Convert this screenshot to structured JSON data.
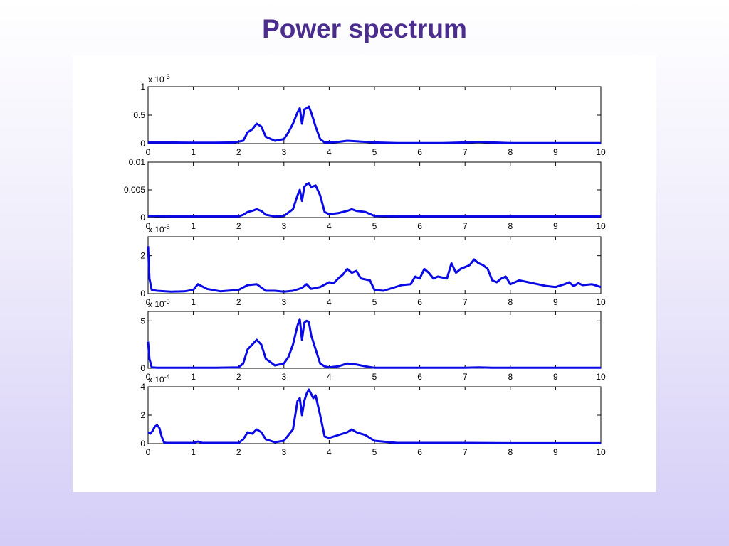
{
  "slide": {
    "title": "Power spectrum",
    "title_color": "#4a2d8c"
  },
  "line_color": "#0a0ae6",
  "chart_data": [
    {
      "type": "line",
      "xlim": [
        0,
        10
      ],
      "ylim": [
        0,
        1
      ],
      "xticks": [
        "0",
        "1",
        "2",
        "3",
        "4",
        "5",
        "6",
        "7",
        "8",
        "9",
        "10"
      ],
      "yticks": [
        {
          "v": 0,
          "label": "0"
        },
        {
          "v": 0.5,
          "label": "0.5"
        },
        {
          "v": 1,
          "label": "1"
        }
      ],
      "exponent": {
        "base": "x 10",
        "power": "-3"
      },
      "series": [
        {
          "x": [
            0,
            0.5,
            1,
            1.5,
            1.9,
            2.1,
            2.2,
            2.3,
            2.4,
            2.5,
            2.6,
            2.8,
            3.0,
            3.1,
            3.2,
            3.3,
            3.35,
            3.4,
            3.45,
            3.5,
            3.55,
            3.6,
            3.7,
            3.8,
            3.9,
            4.0,
            4.2,
            4.4,
            4.6,
            5.0,
            5.5,
            6.0,
            6.5,
            7.0,
            7.3,
            7.6,
            8.0,
            8.5,
            9.0,
            10.0
          ],
          "y": [
            0.02,
            0.02,
            0.015,
            0.015,
            0.02,
            0.05,
            0.2,
            0.25,
            0.35,
            0.3,
            0.12,
            0.05,
            0.08,
            0.2,
            0.35,
            0.55,
            0.62,
            0.35,
            0.6,
            0.62,
            0.65,
            0.55,
            0.3,
            0.08,
            0.02,
            0.02,
            0.03,
            0.05,
            0.04,
            0.02,
            0.01,
            0.01,
            0.01,
            0.02,
            0.03,
            0.02,
            0.01,
            0.01,
            0.01,
            0.01
          ]
        }
      ]
    },
    {
      "type": "line",
      "xlim": [
        0,
        10
      ],
      "ylim": [
        0,
        0.01
      ],
      "xticks": [
        "0",
        "1",
        "2",
        "3",
        "4",
        "5",
        "6",
        "7",
        "8",
        "9",
        "10"
      ],
      "yticks": [
        {
          "v": 0,
          "label": "0"
        },
        {
          "v": 0.005,
          "label": "0.005"
        },
        {
          "v": 0.01,
          "label": "0.01"
        }
      ],
      "exponent": null,
      "series": [
        {
          "x": [
            0,
            0.5,
            1,
            1.5,
            2.0,
            2.1,
            2.2,
            2.3,
            2.4,
            2.5,
            2.6,
            2.8,
            3.0,
            3.2,
            3.3,
            3.35,
            3.4,
            3.45,
            3.5,
            3.55,
            3.6,
            3.7,
            3.8,
            3.9,
            4.0,
            4.2,
            4.4,
            4.5,
            4.6,
            4.8,
            5.0,
            5.5,
            6.0,
            7.0,
            8.0,
            9.0,
            10.0
          ],
          "y": [
            0.0003,
            0.0002,
            0.0002,
            0.0002,
            0.0002,
            0.0005,
            0.001,
            0.0012,
            0.0015,
            0.0012,
            0.0005,
            0.0002,
            0.0003,
            0.0015,
            0.004,
            0.005,
            0.003,
            0.0055,
            0.006,
            0.0062,
            0.0055,
            0.0058,
            0.004,
            0.001,
            0.0006,
            0.0008,
            0.0012,
            0.0015,
            0.0012,
            0.001,
            0.0003,
            0.0002,
            0.0002,
            0.0002,
            0.0002,
            0.0002,
            0.0002
          ]
        }
      ]
    },
    {
      "type": "line",
      "xlim": [
        0,
        10
      ],
      "ylim": [
        0,
        3
      ],
      "xticks": [
        "0",
        "1",
        "2",
        "3",
        "4",
        "5",
        "6",
        "7",
        "8",
        "9",
        "10"
      ],
      "yticks": [
        {
          "v": 0,
          "label": "0"
        },
        {
          "v": 2,
          "label": "2"
        }
      ],
      "exponent": {
        "base": "x 10",
        "power": "-6"
      },
      "series": [
        {
          "x": [
            0,
            0.03,
            0.08,
            0.2,
            0.5,
            0.8,
            1.0,
            1.1,
            1.3,
            1.6,
            2.0,
            2.2,
            2.4,
            2.6,
            2.8,
            3.0,
            3.2,
            3.4,
            3.5,
            3.6,
            3.8,
            4.0,
            4.1,
            4.2,
            4.3,
            4.4,
            4.5,
            4.6,
            4.7,
            4.9,
            5.0,
            5.2,
            5.4,
            5.6,
            5.8,
            5.9,
            6.0,
            6.1,
            6.2,
            6.3,
            6.4,
            6.6,
            6.7,
            6.8,
            6.9,
            7.0,
            7.1,
            7.2,
            7.3,
            7.4,
            7.5,
            7.6,
            7.7,
            7.8,
            7.9,
            8.0,
            8.2,
            8.4,
            8.6,
            8.8,
            9.0,
            9.2,
            9.3,
            9.4,
            9.5,
            9.6,
            9.8,
            10.0
          ],
          "y": [
            2.5,
            0.8,
            0.2,
            0.15,
            0.1,
            0.12,
            0.2,
            0.5,
            0.25,
            0.12,
            0.2,
            0.45,
            0.5,
            0.15,
            0.15,
            0.1,
            0.15,
            0.3,
            0.5,
            0.25,
            0.35,
            0.6,
            0.55,
            0.8,
            1.0,
            1.3,
            1.1,
            1.2,
            0.8,
            0.7,
            0.2,
            0.15,
            0.3,
            0.45,
            0.5,
            0.9,
            0.8,
            1.3,
            1.1,
            0.8,
            0.9,
            0.8,
            1.6,
            1.1,
            1.3,
            1.4,
            1.5,
            1.8,
            1.6,
            1.5,
            1.3,
            0.7,
            0.6,
            0.8,
            0.9,
            0.5,
            0.7,
            0.6,
            0.5,
            0.4,
            0.35,
            0.5,
            0.6,
            0.4,
            0.55,
            0.45,
            0.5,
            0.35
          ]
        }
      ]
    },
    {
      "type": "line",
      "xlim": [
        0,
        10
      ],
      "ylim": [
        0,
        6
      ],
      "xticks": [
        "0",
        "1",
        "2",
        "3",
        "4",
        "5",
        "6",
        "7",
        "8",
        "9",
        "10"
      ],
      "yticks": [
        {
          "v": 0,
          "label": "0"
        },
        {
          "v": 5,
          "label": "5"
        }
      ],
      "exponent": {
        "base": "x 10",
        "power": "-5"
      },
      "series": [
        {
          "x": [
            0,
            0.03,
            0.08,
            0.2,
            0.5,
            1,
            1.5,
            2.0,
            2.1,
            2.2,
            2.3,
            2.4,
            2.5,
            2.6,
            2.8,
            3.0,
            3.1,
            3.2,
            3.3,
            3.35,
            3.4,
            3.45,
            3.5,
            3.55,
            3.6,
            3.7,
            3.8,
            3.9,
            4.0,
            4.2,
            4.4,
            4.6,
            4.8,
            5.0,
            6.0,
            7.0,
            7.3,
            7.6,
            8.0,
            9.0,
            10.0
          ],
          "y": [
            2.8,
            1.0,
            0.1,
            0.05,
            0.05,
            0.05,
            0.05,
            0.1,
            0.5,
            2.0,
            2.5,
            3.0,
            2.5,
            1.0,
            0.3,
            0.5,
            1.2,
            2.5,
            4.5,
            5.2,
            3.0,
            4.8,
            5.0,
            4.9,
            3.5,
            2.0,
            0.5,
            0.2,
            0.1,
            0.2,
            0.5,
            0.4,
            0.2,
            0.05,
            0.05,
            0.05,
            0.1,
            0.05,
            0.05,
            0.05,
            0.05
          ]
        }
      ]
    },
    {
      "type": "line",
      "xlim": [
        0,
        10
      ],
      "ylim": [
        0,
        4
      ],
      "xticks": [
        "0",
        "1",
        "2",
        "3",
        "4",
        "5",
        "6",
        "7",
        "8",
        "9",
        "10"
      ],
      "yticks": [
        {
          "v": 0,
          "label": "0"
        },
        {
          "v": 2,
          "label": "2"
        },
        {
          "v": 4,
          "label": "4"
        }
      ],
      "exponent": {
        "base": "x 10",
        "power": "-4"
      },
      "series": [
        {
          "x": [
            0,
            0.05,
            0.1,
            0.15,
            0.2,
            0.25,
            0.3,
            0.35,
            0.4,
            0.6,
            1.0,
            1.1,
            1.2,
            1.5,
            2.0,
            2.1,
            2.2,
            2.3,
            2.4,
            2.5,
            2.6,
            2.8,
            3.0,
            3.2,
            3.3,
            3.35,
            3.4,
            3.45,
            3.5,
            3.55,
            3.6,
            3.65,
            3.7,
            3.8,
            3.9,
            4.0,
            4.2,
            4.4,
            4.5,
            4.6,
            4.8,
            5.0,
            5.5,
            6.0,
            7.0,
            8.0,
            9.0,
            10.0
          ],
          "y": [
            0.8,
            0.7,
            0.9,
            1.2,
            1.3,
            1.1,
            0.5,
            0.1,
            0.05,
            0.05,
            0.05,
            0.15,
            0.05,
            0.05,
            0.05,
            0.3,
            0.8,
            0.7,
            1.0,
            0.8,
            0.3,
            0.1,
            0.2,
            1.0,
            3.0,
            3.2,
            2.0,
            3.0,
            3.5,
            3.8,
            3.5,
            3.2,
            3.4,
            2.0,
            0.5,
            0.4,
            0.6,
            0.8,
            1.0,
            0.8,
            0.6,
            0.2,
            0.05,
            0.05,
            0.05,
            0.03,
            0.03,
            0.03
          ]
        }
      ]
    }
  ]
}
